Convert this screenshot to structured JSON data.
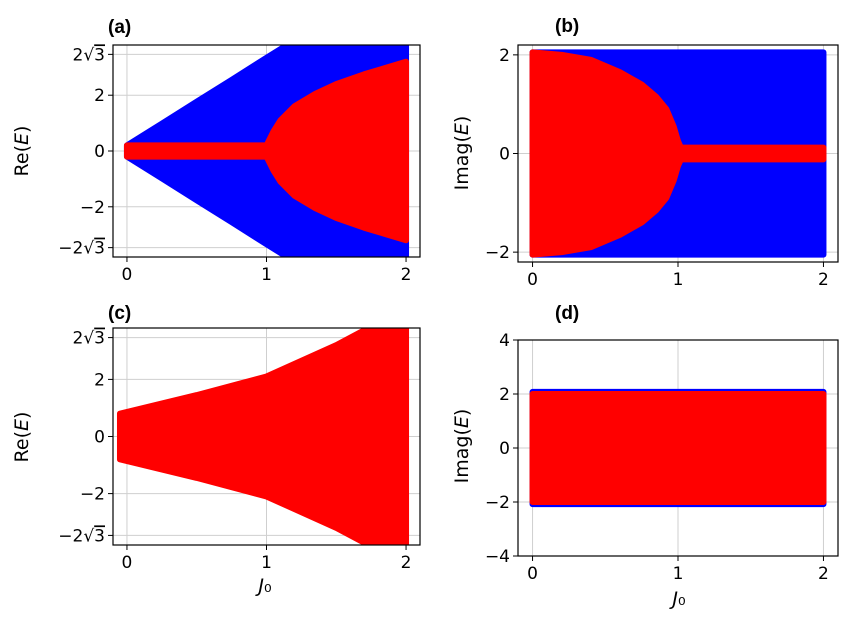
{
  "figure": {
    "colors": {
      "blue": "#0000ff",
      "red": "#ff0000",
      "grid": "#cfcfcf"
    }
  },
  "chart_data": [
    {
      "panel": "(a)",
      "type": "area",
      "xlabel": "",
      "ylabel": "Re(E)",
      "xlim": [
        -0.1,
        2.1
      ],
      "ylim": [
        -3.8,
        3.8
      ],
      "xticks": [
        {
          "v": 0,
          "label": "0"
        },
        {
          "v": 1,
          "label": "1"
        },
        {
          "v": 2,
          "label": "2"
        }
      ],
      "yticks": [
        {
          "v": 3.4641,
          "label": "2√3"
        },
        {
          "v": 2,
          "label": "2"
        },
        {
          "v": 0,
          "label": "0"
        },
        {
          "v": -2,
          "label": "−2"
        },
        {
          "v": -3.4641,
          "label": "−2√3"
        }
      ],
      "grid": true,
      "series": [
        {
          "color": "blue",
          "x": [
            0,
            0.25,
            0.5,
            0.75,
            1,
            1.25,
            1.5,
            1.75,
            2
          ],
          "upper": [
            0.2,
            0.98,
            1.77,
            2.55,
            3.34,
            4.12,
            4.91,
            5.7,
            6.48
          ],
          "lower": [
            -0.2,
            -0.98,
            -1.77,
            -2.55,
            -3.34,
            -4.12,
            -4.91,
            -5.7,
            -6.48
          ]
        },
        {
          "color": "red",
          "x": [
            0,
            0.5,
            1,
            1.05,
            1.1,
            1.2,
            1.35,
            1.5,
            1.7,
            2
          ],
          "upper": [
            0.2,
            0.2,
            0.2,
            0.7,
            1.1,
            1.6,
            2.05,
            2.4,
            2.75,
            3.2
          ],
          "lower": [
            -0.2,
            -0.2,
            -0.2,
            -0.7,
            -1.1,
            -1.6,
            -2.05,
            -2.4,
            -2.75,
            -3.2
          ]
        }
      ]
    },
    {
      "panel": "(b)",
      "type": "area",
      "xlabel": "",
      "ylabel": "Imag(E)",
      "xlim": [
        -0.1,
        2.1
      ],
      "ylim": [
        -2.2,
        2.2
      ],
      "xticks": [
        {
          "v": 0,
          "label": "0"
        },
        {
          "v": 1,
          "label": "1"
        },
        {
          "v": 2,
          "label": "2"
        }
      ],
      "yticks": [
        {
          "v": 2,
          "label": "2"
        },
        {
          "v": 0,
          "label": "0"
        },
        {
          "v": -2,
          "label": "−2"
        }
      ],
      "grid": true,
      "series": [
        {
          "color": "blue",
          "x": [
            0,
            2
          ],
          "upper": [
            2.05,
            2.05
          ],
          "lower": [
            -2.05,
            -2.05
          ]
        },
        {
          "color": "red",
          "x": [
            0,
            0.2,
            0.4,
            0.6,
            0.75,
            0.85,
            0.92,
            0.97,
            1.0,
            1.02,
            1.5,
            2
          ],
          "upper": [
            2.05,
            2.0,
            1.9,
            1.65,
            1.4,
            1.15,
            0.9,
            0.55,
            0.25,
            0.12,
            0.12,
            0.12
          ],
          "lower": [
            -2.05,
            -2.0,
            -1.9,
            -1.65,
            -1.4,
            -1.15,
            -0.9,
            -0.55,
            -0.25,
            -0.12,
            -0.12,
            -0.12
          ]
        }
      ]
    },
    {
      "panel": "(c)",
      "type": "area",
      "xlabel": "J₀",
      "ylabel": "Re(E)",
      "xlim": [
        -0.1,
        2.1
      ],
      "ylim": [
        -3.8,
        3.8
      ],
      "xticks": [
        {
          "v": 0,
          "label": "0"
        },
        {
          "v": 1,
          "label": "1"
        },
        {
          "v": 2,
          "label": "2"
        }
      ],
      "yticks": [
        {
          "v": 3.4641,
          "label": "2√3"
        },
        {
          "v": 2,
          "label": "2"
        },
        {
          "v": 0,
          "label": "0"
        },
        {
          "v": -2,
          "label": "−2"
        },
        {
          "v": -3.4641,
          "label": "−2√3"
        }
      ],
      "grid": true,
      "series": [
        {
          "color": "red",
          "x": [
            -0.05,
            0.5,
            1,
            1.5,
            2
          ],
          "upper": [
            0.8,
            1.45,
            2.1,
            3.2,
            4.5
          ],
          "lower": [
            -0.8,
            -1.45,
            -2.1,
            -3.2,
            -4.5
          ]
        }
      ]
    },
    {
      "panel": "(d)",
      "type": "area",
      "xlabel": "J₀",
      "ylabel": "Imag(E)",
      "xlim": [
        -0.1,
        2.1
      ],
      "ylim": [
        -4,
        4
      ],
      "xticks": [
        {
          "v": 0,
          "label": "0"
        },
        {
          "v": 1,
          "label": "1"
        },
        {
          "v": 2,
          "label": "2"
        }
      ],
      "yticks": [
        {
          "v": 4,
          "label": "4"
        },
        {
          "v": 2,
          "label": "2"
        },
        {
          "v": 0,
          "label": "0"
        },
        {
          "v": -2,
          "label": "−2"
        },
        {
          "v": -4,
          "label": "−4"
        }
      ],
      "grid": true,
      "series": [
        {
          "color": "blue",
          "x": [
            0,
            2
          ],
          "upper": [
            2.08,
            2.08
          ],
          "lower": [
            -2.08,
            -2.08
          ]
        },
        {
          "color": "red",
          "x": [
            0,
            2
          ],
          "upper": [
            2.0,
            2.0
          ],
          "lower": [
            -2.0,
            -2.0
          ]
        }
      ]
    }
  ]
}
